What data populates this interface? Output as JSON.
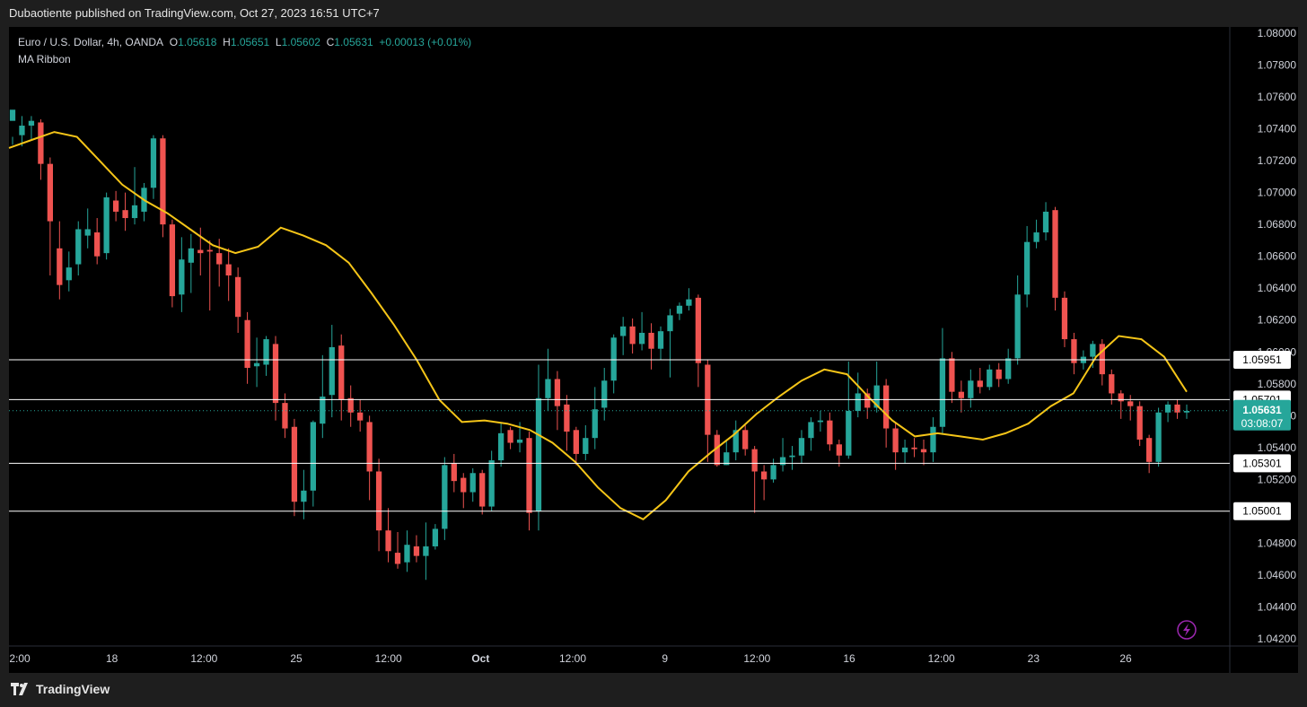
{
  "header": {
    "publish_text": "Dubaotiente published on TradingView.com, Oct 27, 2023 16:51 UTC+7"
  },
  "legend": {
    "symbol": "Euro / U.S. Dollar, 4h, OANDA",
    "o_label": "O",
    "o": "1.05618",
    "h_label": "H",
    "h": "1.05651",
    "l_label": "L",
    "l": "1.05602",
    "c_label": "C",
    "c": "1.05631",
    "change": "+0.00013 (+0.01%)",
    "indicator": "MA Ribbon"
  },
  "brand": {
    "name": "TradingView"
  },
  "colors": {
    "up": "#26a69a",
    "down": "#ef5350",
    "ma": "#f5c518",
    "background": "#000000",
    "frame": "#1e1e1e"
  },
  "chart_data": {
    "type": "candlestick",
    "instrument": "EURUSD",
    "timeframe": "4h",
    "y_ticks": [
      "1.08000",
      "1.07800",
      "1.07600",
      "1.07400",
      "1.07200",
      "1.07000",
      "1.06800",
      "1.06600",
      "1.06400",
      "1.06200",
      "1.06000",
      "1.05800",
      "1.05600",
      "1.05400",
      "1.05200",
      "1.04800",
      "1.04600",
      "1.04400",
      "1.04200"
    ],
    "ylim": [
      1.041,
      1.0805
    ],
    "x_ticks": [
      "2:00",
      "18",
      "12:00",
      "25",
      "12:00",
      "Oct",
      "12:00",
      "9",
      "12:00",
      "16",
      "12:00",
      "23",
      "26"
    ],
    "horizontal_lines": [
      {
        "label": "1.05951",
        "value": 1.05951
      },
      {
        "label": "1.05701",
        "value": 1.05701
      },
      {
        "label": "1.05301",
        "value": 1.05301
      },
      {
        "label": "1.05001",
        "value": 1.05001
      }
    ],
    "last_price": {
      "label": "1.05631",
      "value": 1.05631,
      "countdown": "03:08:07"
    },
    "ma_series": {
      "name": "MA Ribbon",
      "values": [
        1.0728,
        1.0733,
        1.0738,
        1.0735,
        1.072,
        1.0705,
        1.0695,
        1.0687,
        1.0677,
        1.0667,
        1.0662,
        1.0666,
        1.0678,
        1.0673,
        1.0667,
        1.0656,
        1.0637,
        1.0617,
        1.0595,
        1.057,
        1.0556,
        1.0557,
        1.0555,
        1.0551,
        1.0543,
        1.0531,
        1.0515,
        1.0502,
        1.0495,
        1.0507,
        1.0525,
        1.0537,
        1.0548,
        1.0561,
        1.0572,
        1.0582,
        1.0589,
        1.0586,
        1.0571,
        1.0557,
        1.0547,
        1.0549,
        1.0547,
        1.0545,
        1.0549,
        1.0555,
        1.0566,
        1.0574,
        1.0597,
        1.061,
        1.0608,
        1.0597,
        1.0575
      ]
    },
    "candles": [
      [
        1.0745,
        1.0752,
        1.0735,
        1.073
      ],
      [
        1.0736,
        1.0742,
        1.0748,
        1.0729
      ],
      [
        1.0742,
        1.0745,
        1.0748,
        1.0733
      ],
      [
        1.0744,
        1.0718,
        1.0746,
        1.0708
      ],
      [
        1.0718,
        1.0682,
        1.0722,
        1.0648
      ],
      [
        1.0665,
        1.0642,
        1.0682,
        1.0633
      ],
      [
        1.0645,
        1.0653,
        1.0663,
        1.0638
      ],
      [
        1.0655,
        1.0677,
        1.0682,
        1.0648
      ],
      [
        1.0673,
        1.0677,
        1.069,
        1.0665
      ],
      [
        1.0675,
        1.066,
        1.0684,
        1.0655
      ],
      [
        1.0662,
        1.0697,
        1.07,
        1.0658
      ],
      [
        1.0695,
        1.0688,
        1.0701,
        1.0682
      ],
      [
        1.0689,
        1.0684,
        1.07,
        1.0676
      ],
      [
        1.0684,
        1.0692,
        1.0716,
        1.068
      ],
      [
        1.0688,
        1.0703,
        1.0706,
        1.0682
      ],
      [
        1.0703,
        1.0734,
        1.0736,
        1.0696
      ],
      [
        1.0734,
        1.068,
        1.0736,
        1.0672
      ],
      [
        1.068,
        1.0635,
        1.0683,
        1.0628
      ],
      [
        1.0636,
        1.0658,
        1.0672,
        1.0625
      ],
      [
        1.0656,
        1.0665,
        1.0674,
        1.0637
      ],
      [
        1.0664,
        1.0662,
        1.0678,
        1.0648
      ],
      [
        1.0664,
        1.0663,
        1.067,
        1.0626
      ],
      [
        1.0662,
        1.0655,
        1.0671,
        1.0641
      ],
      [
        1.0655,
        1.0648,
        1.0665,
        1.0632
      ],
      [
        1.0647,
        1.0622,
        1.0653,
        1.0612
      ],
      [
        1.062,
        1.059,
        1.0625,
        1.058
      ],
      [
        1.0591,
        1.0593,
        1.0609,
        1.0578
      ],
      [
        1.0592,
        1.0608,
        1.061,
        1.0585
      ],
      [
        1.0605,
        1.0568,
        1.061,
        1.0557
      ],
      [
        1.0568,
        1.0552,
        1.0574,
        1.0546
      ],
      [
        1.0553,
        1.0506,
        1.0558,
        1.0497
      ],
      [
        1.0506,
        1.0513,
        1.0526,
        1.0495
      ],
      [
        1.0513,
        1.0556,
        1.0557,
        1.0503
      ],
      [
        1.0555,
        1.0572,
        1.0598,
        1.0546
      ],
      [
        1.0573,
        1.0603,
        1.0617,
        1.0559
      ],
      [
        1.0604,
        1.057,
        1.0611,
        1.0557
      ],
      [
        1.0571,
        1.0562,
        1.0579,
        1.0553
      ],
      [
        1.0562,
        1.0557,
        1.057,
        1.055
      ],
      [
        1.0556,
        1.0525,
        1.056,
        1.0507
      ],
      [
        1.0525,
        1.0488,
        1.0533,
        1.0475
      ],
      [
        1.0488,
        1.0475,
        1.0502,
        1.0468
      ],
      [
        1.0474,
        1.0467,
        1.0487,
        1.0464
      ],
      [
        1.0468,
        1.0479,
        1.0488,
        1.0462
      ],
      [
        1.0478,
        1.0472,
        1.0485,
        1.0468
      ],
      [
        1.0472,
        1.0478,
        1.0493,
        1.0457
      ],
      [
        1.0478,
        1.0489,
        1.0492,
        1.0476
      ],
      [
        1.0489,
        1.0529,
        1.0534,
        1.0482
      ],
      [
        1.053,
        1.0519,
        1.0536,
        1.0512
      ],
      [
        1.0521,
        1.0512,
        1.0524,
        1.0502
      ],
      [
        1.0512,
        1.0524,
        1.0527,
        1.0506
      ],
      [
        1.0524,
        1.0503,
        1.0526,
        1.0498
      ],
      [
        1.0503,
        1.0532,
        1.0538,
        1.05
      ],
      [
        1.0532,
        1.0549,
        1.0556,
        1.0528
      ],
      [
        1.0551,
        1.0543,
        1.0553,
        1.0539
      ],
      [
        1.0543,
        1.0545,
        1.0556,
        1.0537
      ],
      [
        1.0546,
        1.0499,
        1.055,
        1.0488
      ],
      [
        1.05,
        1.0571,
        1.0592,
        1.0488
      ],
      [
        1.0571,
        1.0583,
        1.0602,
        1.0563
      ],
      [
        1.0583,
        1.0566,
        1.0588,
        1.0551
      ],
      [
        1.0567,
        1.055,
        1.0573,
        1.0538
      ],
      [
        1.0551,
        1.0536,
        1.0553,
        1.0529
      ],
      [
        1.0536,
        1.0546,
        1.0554,
        1.0532
      ],
      [
        1.0546,
        1.0564,
        1.0578,
        1.0539
      ],
      [
        1.0565,
        1.0582,
        1.059,
        1.0557
      ],
      [
        1.0582,
        1.0609,
        1.0611,
        1.0574
      ],
      [
        1.061,
        1.0616,
        1.0622,
        1.0598
      ],
      [
        1.0616,
        1.0605,
        1.0621,
        1.0599
      ],
      [
        1.0605,
        1.0612,
        1.0625,
        1.0601
      ],
      [
        1.0612,
        1.0602,
        1.0618,
        1.0589
      ],
      [
        1.0602,
        1.0613,
        1.0616,
        1.0595
      ],
      [
        1.0613,
        1.0623,
        1.0627,
        1.0584
      ],
      [
        1.0624,
        1.0629,
        1.0631,
        1.062
      ],
      [
        1.0629,
        1.0633,
        1.064,
        1.0626
      ],
      [
        1.0634,
        1.0593,
        1.0636,
        1.0578
      ],
      [
        1.0592,
        1.0548,
        1.0595,
        1.0531
      ],
      [
        1.0548,
        1.0529,
        1.0551,
        1.0528
      ],
      [
        1.0529,
        1.0537,
        1.0544,
        1.0529
      ],
      [
        1.0537,
        1.0551,
        1.0557,
        1.0532
      ],
      [
        1.0551,
        1.0539,
        1.0554,
        1.0535
      ],
      [
        1.0539,
        1.0525,
        1.0541,
        1.0499
      ],
      [
        1.0525,
        1.052,
        1.0529,
        1.0507
      ],
      [
        1.052,
        1.0529,
        1.0533,
        1.0518
      ],
      [
        1.0529,
        1.0534,
        1.0546,
        1.0525
      ],
      [
        1.0534,
        1.0535,
        1.0541,
        1.0526
      ],
      [
        1.0535,
        1.0546,
        1.0551,
        1.053
      ],
      [
        1.0546,
        1.0556,
        1.0559,
        1.0538
      ],
      [
        1.0556,
        1.0557,
        1.0563,
        1.055
      ],
      [
        1.0557,
        1.0542,
        1.0562,
        1.0538
      ],
      [
        1.0542,
        1.0535,
        1.0545,
        1.0528
      ],
      [
        1.0535,
        1.0563,
        1.0594,
        1.0533
      ],
      [
        1.0563,
        1.0574,
        1.0587,
        1.0559
      ],
      [
        1.0574,
        1.0565,
        1.0577,
        1.0558
      ],
      [
        1.0565,
        1.0579,
        1.0594,
        1.0562
      ],
      [
        1.0579,
        1.0552,
        1.0583,
        1.054
      ],
      [
        1.0552,
        1.0537,
        1.0556,
        1.0526
      ],
      [
        1.0537,
        1.054,
        1.0545,
        1.053
      ],
      [
        1.054,
        1.0539,
        1.0546,
        1.0534
      ],
      [
        1.0539,
        1.0537,
        1.0545,
        1.0529
      ],
      [
        1.0537,
        1.0553,
        1.0559,
        1.0531
      ],
      [
        1.0553,
        1.0596,
        1.0615,
        1.0548
      ],
      [
        1.0596,
        1.0575,
        1.06,
        1.0568
      ],
      [
        1.0575,
        1.0571,
        1.0582,
        1.0562
      ],
      [
        1.0571,
        1.0582,
        1.0589,
        1.0565
      ],
      [
        1.0582,
        1.0578,
        1.059,
        1.0574
      ],
      [
        1.0578,
        1.0589,
        1.0592,
        1.0576
      ],
      [
        1.0589,
        1.0583,
        1.0593,
        1.0578
      ],
      [
        1.0583,
        1.0596,
        1.0602,
        1.058
      ],
      [
        1.0596,
        1.0636,
        1.0648,
        1.0592
      ],
      [
        1.0636,
        1.0669,
        1.0679,
        1.0628
      ],
      [
        1.0669,
        1.0675,
        1.0683,
        1.0665
      ],
      [
        1.0675,
        1.0688,
        1.0694,
        1.067
      ],
      [
        1.0689,
        1.0634,
        1.0691,
        1.0626
      ],
      [
        1.0634,
        1.0608,
        1.0638,
        1.0603
      ],
      [
        1.0608,
        1.0593,
        1.0612,
        1.0586
      ],
      [
        1.0593,
        1.0597,
        1.0601,
        1.0589
      ],
      [
        1.0597,
        1.0605,
        1.0607,
        1.059
      ],
      [
        1.0605,
        1.0586,
        1.0608,
        1.0579
      ],
      [
        1.0586,
        1.0574,
        1.0589,
        1.0567
      ],
      [
        1.0574,
        1.0569,
        1.0576,
        1.0558
      ],
      [
        1.0569,
        1.0566,
        1.0573,
        1.0557
      ],
      [
        1.0566,
        1.0545,
        1.0569,
        1.0541
      ],
      [
        1.0546,
        1.0531,
        1.0548,
        1.0524
      ],
      [
        1.0531,
        1.0562,
        1.0565,
        1.0528
      ],
      [
        1.0562,
        1.0567,
        1.0569,
        1.0556
      ],
      [
        1.0567,
        1.0562,
        1.057,
        1.0558
      ],
      [
        1.0562,
        1.0563,
        1.0567,
        1.0558
      ]
    ]
  }
}
